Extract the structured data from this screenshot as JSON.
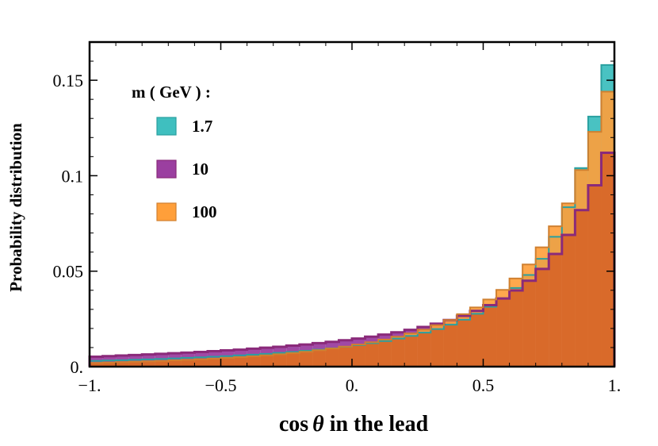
{
  "chart_data": {
    "type": "histogram",
    "xlabel_pre": "cos",
    "xlabel_theta": "θ",
    "xlabel_post": " in the lead",
    "ylabel": "Probability distribution",
    "xlim": [
      -1.0,
      1.0
    ],
    "ylim": [
      0,
      0.17
    ],
    "x_ticks": [
      -1.0,
      -0.5,
      0.0,
      0.5,
      1.0
    ],
    "x_tick_labels": [
      "−1.",
      "−0.5",
      "0.",
      "0.5",
      "1."
    ],
    "y_ticks": [
      0,
      0.05,
      0.1,
      0.15
    ],
    "y_tick_labels": [
      "0.",
      "0.05",
      "0.1",
      "0.15"
    ],
    "bin_edges_range": [
      -1.0,
      1.0
    ],
    "n_bins": 40,
    "legend_title": "m ( GeV ) :",
    "series": [
      {
        "name": "1.7",
        "color": "#3fbfbf",
        "edge": "#2aa0a0",
        "values": [
          0.003,
          0.0032,
          0.0034,
          0.0036,
          0.0038,
          0.004,
          0.0043,
          0.0046,
          0.0049,
          0.0052,
          0.0055,
          0.0059,
          0.0063,
          0.0067,
          0.0072,
          0.0077,
          0.0083,
          0.0089,
          0.0096,
          0.0104,
          0.0113,
          0.0123,
          0.0134,
          0.0147,
          0.0161,
          0.0178,
          0.0197,
          0.022,
          0.0246,
          0.0277,
          0.0314,
          0.0358,
          0.0412,
          0.048,
          0.0565,
          0.068,
          0.0835,
          0.104,
          0.131,
          0.158
        ]
      },
      {
        "name": "10",
        "color": "#9b3fa0",
        "edge": "#8a2a7a",
        "values": [
          0.0052,
          0.0055,
          0.0058,
          0.0061,
          0.0064,
          0.0067,
          0.007,
          0.0073,
          0.0077,
          0.0081,
          0.0085,
          0.0089,
          0.0094,
          0.0099,
          0.0104,
          0.011,
          0.0116,
          0.0123,
          0.013,
          0.0138,
          0.0147,
          0.0157,
          0.0168,
          0.018,
          0.0193,
          0.0208,
          0.0225,
          0.0244,
          0.0266,
          0.0292,
          0.0322,
          0.0357,
          0.0399,
          0.045,
          0.0512,
          0.059,
          0.069,
          0.082,
          0.095,
          0.112
        ]
      },
      {
        "name": "100",
        "color": "#ff9f3a",
        "edge": "#d08030",
        "values": [
          0.002,
          0.0022,
          0.0024,
          0.0026,
          0.0028,
          0.003,
          0.0033,
          0.0036,
          0.0039,
          0.0042,
          0.0046,
          0.005,
          0.0054,
          0.0059,
          0.0065,
          0.0071,
          0.0078,
          0.0086,
          0.0095,
          0.0105,
          0.0116,
          0.0128,
          0.0142,
          0.0157,
          0.0174,
          0.0194,
          0.0217,
          0.0244,
          0.0275,
          0.031,
          0.0352,
          0.0402,
          0.0462,
          0.0535,
          0.0625,
          0.0735,
          0.0855,
          0.103,
          0.123,
          0.144
        ]
      }
    ],
    "overlap_color": "#d96a2a"
  }
}
